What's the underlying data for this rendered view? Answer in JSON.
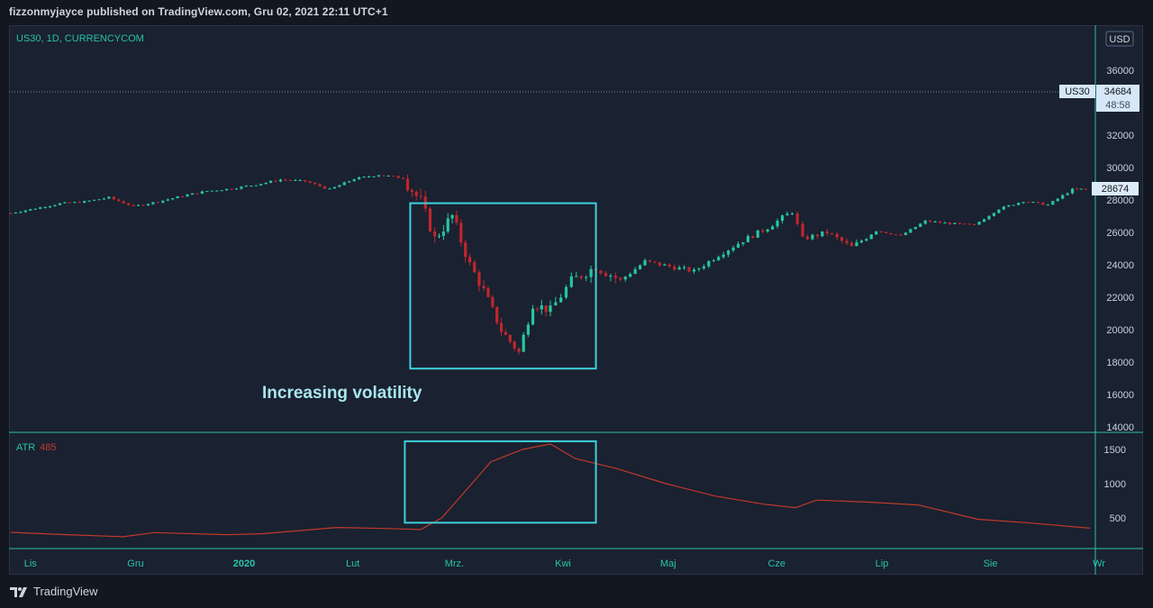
{
  "header": {
    "published_line": "fizzonmyjayce published on TradingView.com, Gru 02, 2021 22:11 UTC+1"
  },
  "main_pane": {
    "symbol_line": "US30, 1D, CURRENCYCOM"
  },
  "price_axis": {
    "currency_label": "USD",
    "current_marker": {
      "symbol": "US30",
      "price": "34684",
      "countdown": "48:58"
    },
    "last_close_marker": "28674"
  },
  "annotation": {
    "text": "Increasing volatility"
  },
  "atr_pane": {
    "name": "ATR",
    "value": "485"
  },
  "footer": {
    "brand": "TradingView"
  },
  "colors": {
    "background": "#131722",
    "pane": "#1a2130",
    "up": "#26c6a0",
    "down": "#c0262d",
    "annotation_box": "#3ed1dc",
    "atr_line": "#c0392b",
    "axis_text": "#27c4a8"
  },
  "chart_data": [
    {
      "type": "candlestick",
      "title": "US30, 1D, CURRENCYCOM",
      "x_ticks": [
        "Lis",
        "Gru",
        "2020",
        "Lut",
        "Mrz.",
        "Kwi",
        "Maj",
        "Cze",
        "Lip",
        "Sie",
        "Wr"
      ],
      "y_ticks": [
        14000,
        16000,
        18000,
        20000,
        22000,
        24000,
        26000,
        28000,
        30000,
        32000,
        36000
      ],
      "ylim": [
        13500,
        38500
      ],
      "grid": false,
      "annotation_box": {
        "x_range": [
          "2020-02-21",
          "2020-04-14"
        ],
        "y_range": [
          17600,
          27800
        ]
      },
      "series": [
        {
          "name": "US30",
          "values": [
            {
              "date": "2019-10-30",
              "close": 27190
            },
            {
              "date": "2019-11-06",
              "close": 27480
            },
            {
              "date": "2019-11-13",
              "close": 27780
            },
            {
              "date": "2019-11-20",
              "close": 27890
            },
            {
              "date": "2019-11-27",
              "close": 28150
            },
            {
              "date": "2019-12-04",
              "close": 27600
            },
            {
              "date": "2019-12-11",
              "close": 27900
            },
            {
              "date": "2019-12-18",
              "close": 28250
            },
            {
              "date": "2019-12-25",
              "close": 28550
            },
            {
              "date": "2020-01-01",
              "close": 28700
            },
            {
              "date": "2020-01-08",
              "close": 28950
            },
            {
              "date": "2020-01-15",
              "close": 29250
            },
            {
              "date": "2020-01-22",
              "close": 29150
            },
            {
              "date": "2020-01-29",
              "close": 28650
            },
            {
              "date": "2020-02-05",
              "close": 29300
            },
            {
              "date": "2020-02-12",
              "close": 29550
            },
            {
              "date": "2020-02-19",
              "close": 29350
            },
            {
              "date": "2020-02-24",
              "close": 27900
            },
            {
              "date": "2020-02-28",
              "close": 25600
            },
            {
              "date": "2020-03-04",
              "close": 27000
            },
            {
              "date": "2020-03-09",
              "close": 24000
            },
            {
              "date": "2020-03-13",
              "close": 22400
            },
            {
              "date": "2020-03-18",
              "close": 19950
            },
            {
              "date": "2020-03-23",
              "close": 18600
            },
            {
              "date": "2020-03-27",
              "close": 21600
            },
            {
              "date": "2020-04-01",
              "close": 21200
            },
            {
              "date": "2020-04-07",
              "close": 23000
            },
            {
              "date": "2020-04-14",
              "close": 23900
            },
            {
              "date": "2020-04-21",
              "close": 23050
            },
            {
              "date": "2020-04-28",
              "close": 24200
            },
            {
              "date": "2020-05-05",
              "close": 23900
            },
            {
              "date": "2020-05-12",
              "close": 23600
            },
            {
              "date": "2020-05-19",
              "close": 24600
            },
            {
              "date": "2020-05-26",
              "close": 25500
            },
            {
              "date": "2020-06-02",
              "close": 26300
            },
            {
              "date": "2020-06-09",
              "close": 27300
            },
            {
              "date": "2020-06-12",
              "close": 25600
            },
            {
              "date": "2020-06-19",
              "close": 26000
            },
            {
              "date": "2020-06-26",
              "close": 25100
            },
            {
              "date": "2020-07-03",
              "close": 26100
            },
            {
              "date": "2020-07-10",
              "close": 25800
            },
            {
              "date": "2020-07-17",
              "close": 26700
            },
            {
              "date": "2020-07-24",
              "close": 26550
            },
            {
              "date": "2020-07-31",
              "close": 26450
            },
            {
              "date": "2020-08-07",
              "close": 27450
            },
            {
              "date": "2020-08-14",
              "close": 27930
            },
            {
              "date": "2020-08-21",
              "close": 27700
            },
            {
              "date": "2020-08-28",
              "close": 28650
            },
            {
              "date": "2020-09-02",
              "close": 28674
            }
          ]
        }
      ]
    },
    {
      "type": "line",
      "title": "ATR",
      "y_ticks": [
        500,
        1000,
        1500
      ],
      "ylim": [
        0,
        1750
      ],
      "annotation_box": {
        "x_range": [
          "2020-02-21",
          "2020-04-14"
        ],
        "y_range": [
          430,
          1620
        ]
      },
      "series": [
        {
          "name": "ATR",
          "values": [
            {
              "date": "2019-10-30",
              "atr": 290
            },
            {
              "date": "2019-11-15",
              "atr": 255
            },
            {
              "date": "2019-12-01",
              "atr": 225
            },
            {
              "date": "2019-12-10",
              "atr": 285
            },
            {
              "date": "2019-12-31",
              "atr": 255
            },
            {
              "date": "2020-01-10",
              "atr": 270
            },
            {
              "date": "2020-01-31",
              "atr": 360
            },
            {
              "date": "2020-02-15",
              "atr": 345
            },
            {
              "date": "2020-02-24",
              "atr": 330
            },
            {
              "date": "2020-03-01",
              "atr": 500
            },
            {
              "date": "2020-03-07",
              "atr": 850
            },
            {
              "date": "2020-03-15",
              "atr": 1320
            },
            {
              "date": "2020-03-24",
              "atr": 1500
            },
            {
              "date": "2020-04-01",
              "atr": 1580
            },
            {
              "date": "2020-04-08",
              "atr": 1370
            },
            {
              "date": "2020-04-20",
              "atr": 1220
            },
            {
              "date": "2020-05-04",
              "atr": 1000
            },
            {
              "date": "2020-05-18",
              "atr": 820
            },
            {
              "date": "2020-06-01",
              "atr": 700
            },
            {
              "date": "2020-06-10",
              "atr": 650
            },
            {
              "date": "2020-06-16",
              "atr": 760
            },
            {
              "date": "2020-07-01",
              "atr": 730
            },
            {
              "date": "2020-07-15",
              "atr": 690
            },
            {
              "date": "2020-08-01",
              "atr": 480
            },
            {
              "date": "2020-08-15",
              "atr": 430
            },
            {
              "date": "2020-09-02",
              "atr": 350
            }
          ]
        }
      ]
    }
  ]
}
